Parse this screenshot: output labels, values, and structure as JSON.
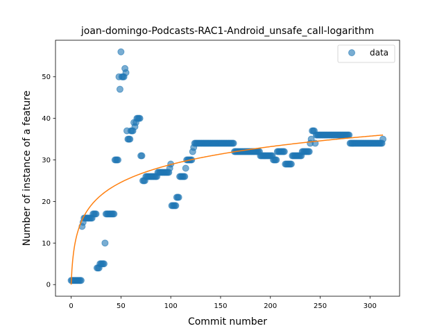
{
  "chart_data": {
    "type": "scatter",
    "title": "joan-domingo-Podcasts-RAC1-Android_unsafe_call-logarithm",
    "xlabel": "Commit number",
    "ylabel": "Number of instance of a feature",
    "xlim": [
      -15.7,
      329.7
    ],
    "ylim": [
      -2.8,
      58.8
    ],
    "xticks": [
      0,
      50,
      100,
      150,
      200,
      250,
      300
    ],
    "yticks": [
      0,
      10,
      20,
      30,
      40,
      50
    ],
    "grid": false,
    "legend": {
      "position": "top-right",
      "entries": [
        "data"
      ]
    },
    "colors": {
      "data": "#1f77b4",
      "fit": "#ff7f0e"
    },
    "series": [
      {
        "name": "data",
        "kind": "scatter",
        "segments": [
          {
            "x_start": 0,
            "x_end": 10,
            "y": 1
          },
          {
            "x": 11,
            "y": 14
          },
          {
            "x": 12,
            "y": 15
          },
          {
            "x_start": 13,
            "x_end": 21,
            "y": 16
          },
          {
            "x_start": 22,
            "x_end": 25,
            "y": 17
          },
          {
            "x_start": 26,
            "x_end": 28,
            "y": 4
          },
          {
            "x_start": 29,
            "x_end": 33,
            "y": 5
          },
          {
            "x": 34,
            "y": 10
          },
          {
            "x_start": 35,
            "x_end": 43,
            "y": 17
          },
          {
            "x_start": 44,
            "x_end": 47,
            "y": 30
          },
          {
            "x": 48,
            "y": 50
          },
          {
            "x": 49,
            "y": 47
          },
          {
            "x": 50,
            "y": 56
          },
          {
            "x_start": 51,
            "x_end": 53,
            "y": 50
          },
          {
            "x": 54,
            "y": 52
          },
          {
            "x": 55,
            "y": 51
          },
          {
            "x": 56,
            "y": 37
          },
          {
            "x_start": 57,
            "x_end": 59,
            "y": 35
          },
          {
            "x_start": 60,
            "x_end": 62,
            "y": 37
          },
          {
            "x": 63,
            "y": 39
          },
          {
            "x": 64,
            "y": 38
          },
          {
            "x": 65,
            "y": 39
          },
          {
            "x_start": 66,
            "x_end": 69,
            "y": 40
          },
          {
            "x_start": 70,
            "x_end": 71,
            "y": 31
          },
          {
            "x_start": 72,
            "x_end": 74,
            "y": 25
          },
          {
            "x_start": 75,
            "x_end": 86,
            "y": 26
          },
          {
            "x_start": 87,
            "x_end": 98,
            "y": 27
          },
          {
            "x": 99,
            "y": 28
          },
          {
            "x": 100,
            "y": 29
          },
          {
            "x_start": 101,
            "x_end": 105,
            "y": 19
          },
          {
            "x_start": 106,
            "x_end": 108,
            "y": 21
          },
          {
            "x_start": 109,
            "x_end": 114,
            "y": 26
          },
          {
            "x": 115,
            "y": 28
          },
          {
            "x_start": 116,
            "x_end": 121,
            "y": 30
          },
          {
            "x": 122,
            "y": 32
          },
          {
            "x": 123,
            "y": 33
          },
          {
            "x_start": 124,
            "x_end": 163,
            "y": 34
          },
          {
            "x_start": 164,
            "x_end": 189,
            "y": 32
          },
          {
            "x_start": 190,
            "x_end": 202,
            "y": 31
          },
          {
            "x_start": 203,
            "x_end": 206,
            "y": 30
          },
          {
            "x_start": 207,
            "x_end": 214,
            "y": 32
          },
          {
            "x_start": 215,
            "x_end": 221,
            "y": 29
          },
          {
            "x_start": 222,
            "x_end": 231,
            "y": 31
          },
          {
            "x_start": 232,
            "x_end": 239,
            "y": 32
          },
          {
            "x": 240,
            "y": 34
          },
          {
            "x": 241,
            "y": 35
          },
          {
            "x_start": 242,
            "x_end": 244,
            "y": 37
          },
          {
            "x": 245,
            "y": 34
          },
          {
            "x_start": 246,
            "x_end": 279,
            "y": 36
          },
          {
            "x_start": 280,
            "x_end": 312,
            "y": 34
          },
          {
            "x": 313,
            "y": 35
          }
        ]
      },
      {
        "name": "",
        "kind": "line",
        "model": "logarithmic",
        "a": 6.26,
        "b": 0,
        "x_range": [
          0,
          313
        ]
      }
    ]
  }
}
